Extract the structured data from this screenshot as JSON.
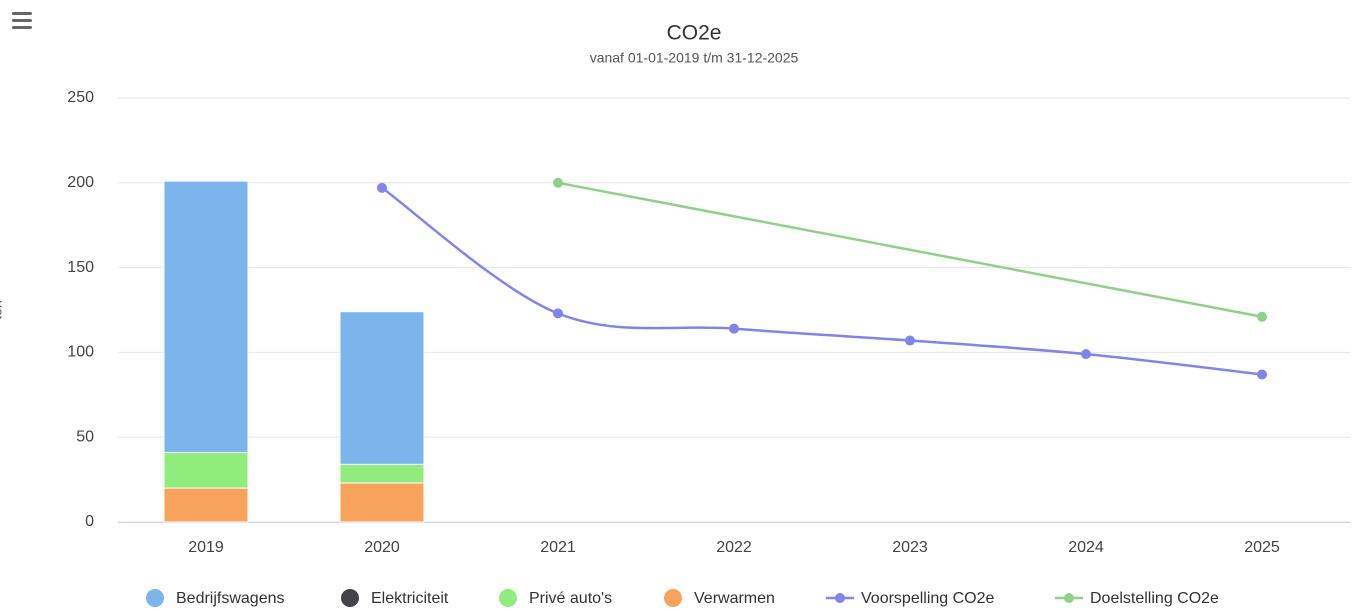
{
  "chart_data": {
    "type": "bar_line",
    "title": "CO2e",
    "subtitle": "vanaf 01-01-2019 t/m 31-12-2025",
    "yaxis_title": "ton",
    "categories": [
      "2019",
      "2020",
      "2021",
      "2022",
      "2023",
      "2024",
      "2025"
    ],
    "ylim": [
      0,
      250
    ],
    "yticks": [
      0,
      50,
      100,
      150,
      200,
      250
    ],
    "grid": true,
    "legend": "bottom",
    "series": [
      {
        "name": "Bedrijfswagens",
        "type": "bar",
        "color": "#7cb5ec",
        "values": [
          160,
          90,
          null,
          null,
          null,
          null,
          null
        ]
      },
      {
        "name": "Elektriciteit",
        "type": "bar",
        "color": "#434348",
        "values": [
          0,
          0,
          null,
          null,
          null,
          null,
          null
        ]
      },
      {
        "name": "Privé auto's",
        "type": "bar",
        "color": "#90ed7d",
        "values": [
          21,
          11,
          null,
          null,
          null,
          null,
          null
        ]
      },
      {
        "name": "Verwarmen",
        "type": "bar",
        "color": "#f7a35c",
        "values": [
          20,
          23,
          null,
          null,
          null,
          null,
          null
        ]
      },
      {
        "name": "Voorspelling CO2e",
        "type": "spline",
        "color": "#8085e9",
        "values": [
          null,
          197,
          123,
          114,
          107,
          99,
          87
        ]
      },
      {
        "name": "Doelstelling CO2e",
        "type": "line",
        "color": "#8fd188",
        "connect_nulls": true,
        "values": [
          null,
          null,
          200,
          null,
          null,
          null,
          121
        ]
      }
    ]
  }
}
